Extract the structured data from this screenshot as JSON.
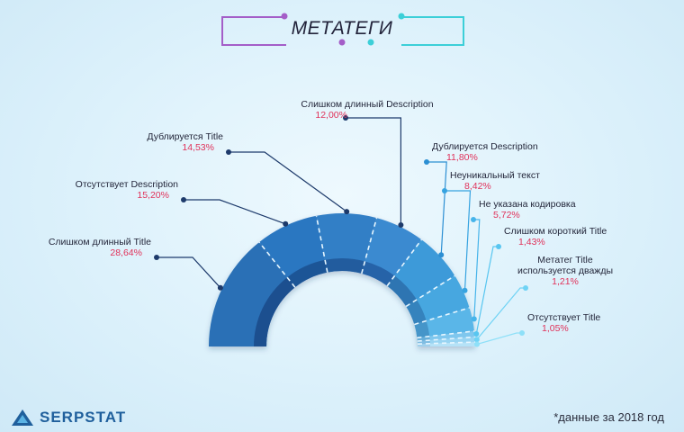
{
  "header": {
    "title": "МЕТАТЕГИ"
  },
  "footer": {
    "logo_text": "SERPSTAT",
    "note": "*данные за 2018 год"
  },
  "colors": {
    "accent_purple": "#a45ec8",
    "accent_cyan": "#3ccfd8",
    "value_red": "#e0325a"
  },
  "chart_data": {
    "type": "pie",
    "title": "МЕТАТЕГИ",
    "slices": [
      {
        "label": "Слишком длинный Title",
        "value_text": "28,64%",
        "value": 28.64
      },
      {
        "label": "Отсутствует Description",
        "value_text": "15,20%",
        "value": 15.2
      },
      {
        "label": "Дублируется Title",
        "value_text": "14,53%",
        "value": 14.53
      },
      {
        "label": "Слишком длинный Description",
        "value_text": "12,00%",
        "value": 12.0
      },
      {
        "label": "Дублируется Description",
        "value_text": "11,80%",
        "value": 11.8
      },
      {
        "label": "Неуникальный текст",
        "value_text": "8,42%",
        "value": 8.42
      },
      {
        "label": "Не указана кодировка",
        "value_text": "5,72%",
        "value": 5.72
      },
      {
        "label": "Слишком короткий Title",
        "value_text": "1,43%",
        "value": 1.43
      },
      {
        "label": "Метатег Title используется дважды",
        "value_text": "1,21%",
        "value": 1.21
      },
      {
        "label": "Отсутствует Title",
        "value_text": "1,05%",
        "value": 1.05
      }
    ]
  }
}
